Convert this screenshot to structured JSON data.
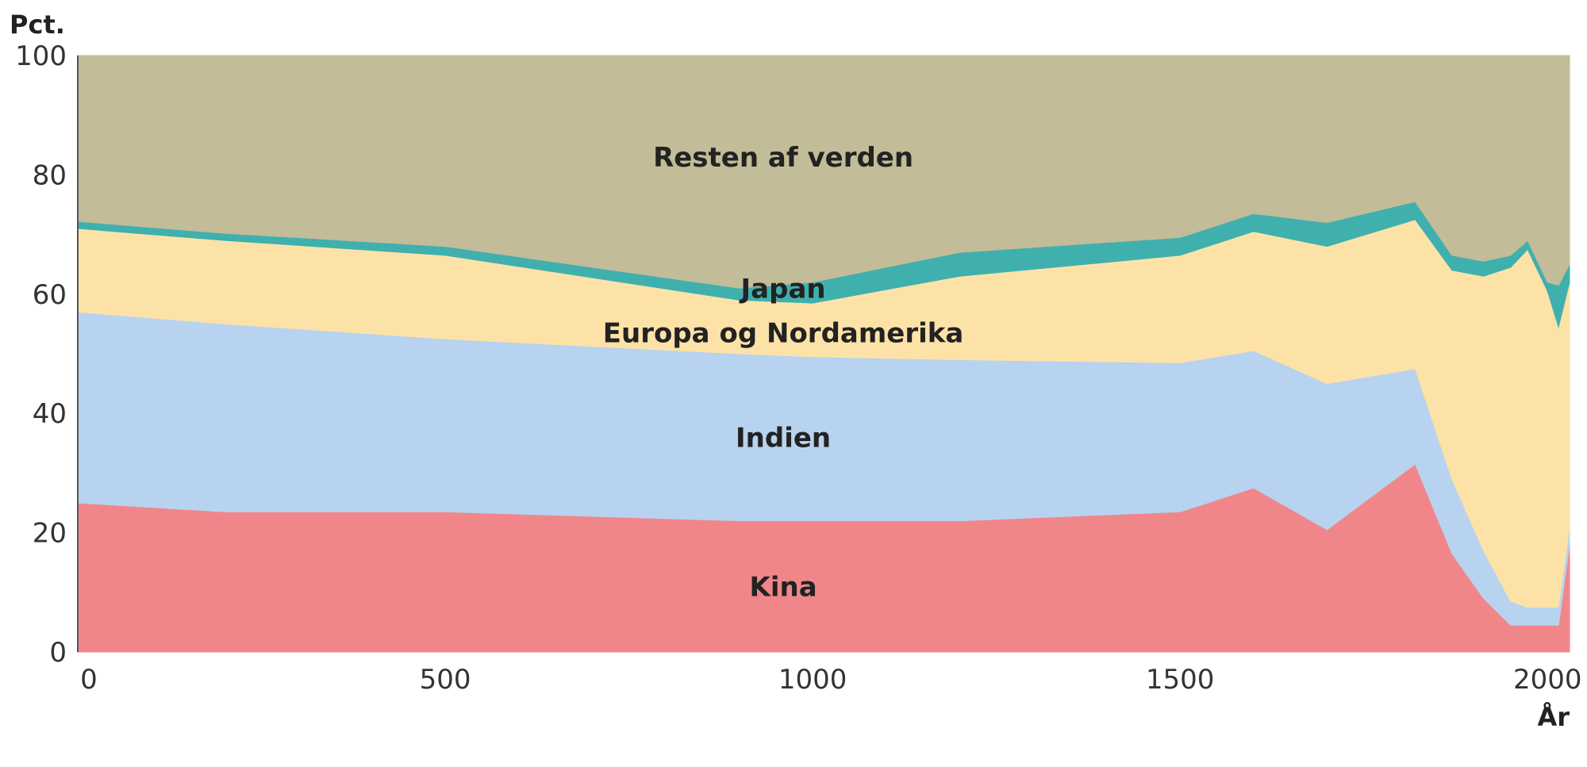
{
  "chart_data": {
    "type": "area",
    "stacked": true,
    "ylabel": "Pct.",
    "xlabel": "År",
    "xlim": [
      0,
      2030
    ],
    "ylim": [
      0,
      100
    ],
    "x_ticks": [
      "0",
      "500",
      "1000",
      "1500",
      "2000"
    ],
    "y_ticks": [
      "0",
      "20",
      "40",
      "60",
      "80",
      "100"
    ],
    "x": [
      0,
      200,
      500,
      900,
      1000,
      1200,
      1500,
      1600,
      1700,
      1820,
      1870,
      1913,
      1950,
      1973,
      2000,
      2015,
      2030
    ],
    "series": [
      {
        "name": "Kina",
        "color": "#f0868a",
        "values": [
          25,
          23.5,
          23.5,
          22,
          22,
          22,
          23.5,
          27.5,
          20.5,
          31.5,
          16.5,
          9,
          4.5,
          4.5,
          4.5,
          4.5,
          18
        ]
      },
      {
        "name": "Indien",
        "color": "#b7d3ef",
        "values": [
          32,
          31.5,
          29,
          28,
          27.5,
          27,
          25,
          23,
          24.5,
          16,
          12.5,
          8,
          4,
          3,
          3,
          3,
          3
        ]
      },
      {
        "name": "Europa og Nordamerika",
        "color": "#fde2a8",
        "values": [
          14,
          14,
          14,
          9,
          9,
          14,
          18,
          20,
          23,
          25,
          35,
          46,
          56,
          60,
          53,
          47,
          41
        ]
      },
      {
        "name": "Japan",
        "color": "#3fb0ae",
        "values": [
          1.2,
          1.2,
          1.5,
          2,
          3.5,
          4,
          3,
          3,
          4,
          3,
          2.5,
          2.5,
          2,
          1.5,
          1.5,
          7,
          3
        ]
      },
      {
        "name": "Resten af verden",
        "color": "#c2bc98",
        "values": [
          27.8,
          29.8,
          32,
          39,
          38,
          33,
          30.5,
          26.5,
          28,
          24.5,
          33.5,
          34.5,
          33.5,
          31,
          38,
          38.5,
          35
        ]
      }
    ],
    "labels": [
      {
        "series": "Resten af verden",
        "text": "Resten af verden",
        "x": 960,
        "y": 83
      },
      {
        "series": "Japan",
        "text": "Japan",
        "x": 960,
        "y": 61
      },
      {
        "series": "Europa og Nordamerika",
        "text": "Europa og Nordamerika",
        "x": 960,
        "y": 53.5
      },
      {
        "series": "Indien",
        "text": "Indien",
        "x": 960,
        "y": 36
      },
      {
        "series": "Kina",
        "text": "Kina",
        "x": 960,
        "y": 11
      }
    ]
  }
}
